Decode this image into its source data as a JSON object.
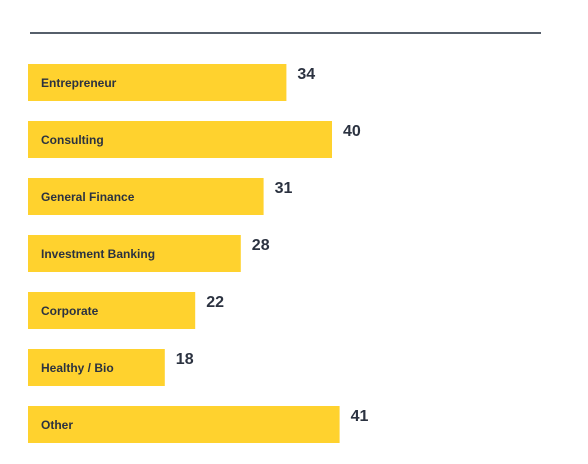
{
  "colors": {
    "bar": "#FFD22E",
    "label": "#2B3240",
    "rule": "#1E2A3A"
  },
  "chart_data": {
    "type": "bar",
    "orientation": "horizontal",
    "categories": [
      "Entrepreneur",
      "Consulting",
      "General Finance",
      "Investment Banking",
      "Corporate",
      "Healthy / Bio",
      "Other"
    ],
    "values": [
      34,
      40,
      31,
      28,
      22,
      18,
      41
    ],
    "title": "",
    "xlabel": "",
    "ylabel": "",
    "grid": false,
    "legend": "none"
  }
}
